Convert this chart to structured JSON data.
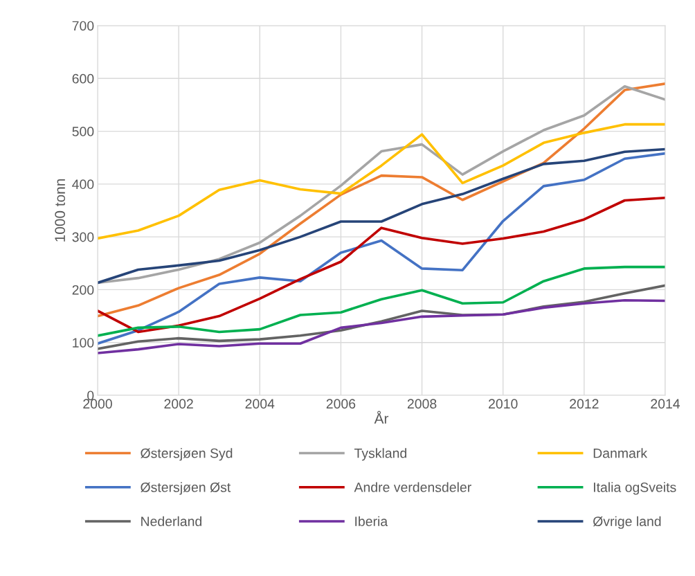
{
  "chart_data": {
    "type": "line",
    "xlabel": "År",
    "ylabel": "1000 tonn",
    "x": [
      2000,
      2001,
      2002,
      2003,
      2004,
      2005,
      2006,
      2007,
      2008,
      2009,
      2010,
      2011,
      2012,
      2013,
      2014
    ],
    "xlim": [
      2000,
      2014
    ],
    "xticks": [
      2000,
      2002,
      2004,
      2006,
      2008,
      2010,
      2012,
      2014
    ],
    "ylim": [
      0,
      700
    ],
    "yticks": [
      0,
      100,
      200,
      300,
      400,
      500,
      600,
      700
    ],
    "grid": true,
    "legend": "bottom",
    "marker": "none",
    "line_style": "solid",
    "series": [
      {
        "name": "Østersjøen Syd",
        "color": "#ed7d31",
        "values": [
          150,
          170,
          203,
          228,
          268,
          325,
          380,
          416,
          413,
          370,
          405,
          440,
          505,
          578,
          590
        ]
      },
      {
        "name": "Tyskland",
        "color": "#a5a5a5",
        "values": [
          213,
          222,
          238,
          258,
          289,
          340,
          397,
          462,
          475,
          418,
          462,
          502,
          530,
          585,
          560
        ]
      },
      {
        "name": "Danmark",
        "color": "#ffc000",
        "values": [
          297,
          312,
          340,
          389,
          407,
          390,
          382,
          435,
          494,
          402,
          435,
          478,
          497,
          513,
          513
        ]
      },
      {
        "name": "Østersjøen Øst",
        "color": "#4472c4",
        "values": [
          98,
          123,
          158,
          211,
          223,
          216,
          270,
          293,
          240,
          237,
          330,
          396,
          408,
          448,
          458
        ]
      },
      {
        "name": "Andre verdensdeler",
        "color": "#c00000",
        "values": [
          160,
          120,
          132,
          150,
          183,
          220,
          253,
          317,
          298,
          287,
          297,
          310,
          333,
          369,
          374
        ]
      },
      {
        "name": "Italia ogSveits",
        "color": "#00b050",
        "values": [
          113,
          128,
          130,
          120,
          125,
          152,
          157,
          182,
          199,
          174,
          176,
          216,
          240,
          243,
          243
        ]
      },
      {
        "name": "Nederland",
        "color": "#636363",
        "values": [
          88,
          102,
          108,
          103,
          106,
          113,
          123,
          140,
          160,
          152,
          153,
          168,
          177,
          193,
          208
        ]
      },
      {
        "name": "Iberia",
        "color": "#7030a0",
        "values": [
          80,
          87,
          97,
          93,
          98,
          98,
          128,
          137,
          149,
          151,
          153,
          166,
          174,
          180,
          179
        ]
      },
      {
        "name": "Øvrige land",
        "color": "#264478",
        "values": [
          213,
          238,
          246,
          255,
          275,
          300,
          329,
          329,
          362,
          381,
          410,
          438,
          444,
          461,
          466
        ]
      }
    ]
  }
}
